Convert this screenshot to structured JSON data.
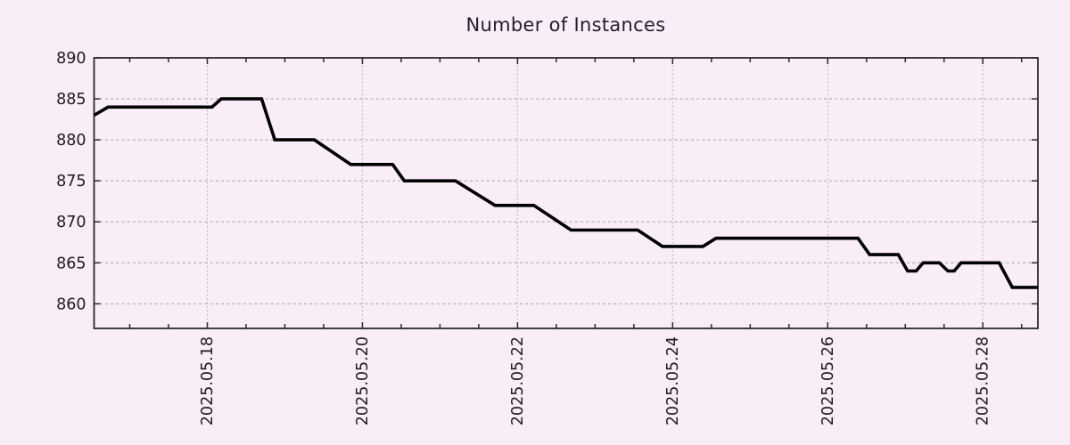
{
  "title": "Number of Instances",
  "colors": {
    "background": "#f9edf7",
    "line": "#000000",
    "grid": "#a3a3a3",
    "frame": "#2b2b2b",
    "tick_text": "#1c1c1c",
    "title_text": "#221e29"
  },
  "chart_data": {
    "type": "line",
    "title": "Number of Instances",
    "xlabel": "",
    "ylabel": "",
    "x_unit": "day of May 2025 (fractional)",
    "xlim": [
      16.54,
      28.71
    ],
    "ylim": [
      857,
      890
    ],
    "y_ticks": [
      860,
      865,
      870,
      875,
      880,
      885,
      890
    ],
    "x_major_ticks": [
      {
        "day": 18,
        "label": "2025.05.18"
      },
      {
        "day": 20,
        "label": "2025.05.20"
      },
      {
        "day": 22,
        "label": "2025.05.22"
      },
      {
        "day": 24,
        "label": "2025.05.24"
      },
      {
        "day": 26,
        "label": "2025.05.26"
      },
      {
        "day": 28,
        "label": "2025.05.28"
      }
    ],
    "x_minor_tick_start_day": 17.0,
    "x_minor_tick_step_days": 0.5,
    "grid": true,
    "legend_position": "none",
    "series": [
      {
        "name": "Number of Instances",
        "color": "#000000",
        "points": [
          [
            16.54,
            883
          ],
          [
            16.72,
            884
          ],
          [
            18.06,
            884
          ],
          [
            18.18,
            885
          ],
          [
            18.7,
            885
          ],
          [
            18.87,
            880
          ],
          [
            19.38,
            880
          ],
          [
            19.85,
            877
          ],
          [
            20.39,
            877
          ],
          [
            20.54,
            875
          ],
          [
            21.2,
            875
          ],
          [
            21.71,
            872
          ],
          [
            22.21,
            872
          ],
          [
            22.69,
            869
          ],
          [
            23.55,
            869
          ],
          [
            23.87,
            867
          ],
          [
            24.39,
            867
          ],
          [
            24.56,
            868
          ],
          [
            26.39,
            868
          ],
          [
            26.54,
            866
          ],
          [
            26.91,
            866
          ],
          [
            27.03,
            864
          ],
          [
            27.14,
            864
          ],
          [
            27.23,
            865
          ],
          [
            27.44,
            865
          ],
          [
            27.55,
            864
          ],
          [
            27.63,
            864
          ],
          [
            27.72,
            865
          ],
          [
            28.21,
            865
          ],
          [
            28.38,
            862
          ],
          [
            28.71,
            862
          ]
        ]
      }
    ]
  }
}
